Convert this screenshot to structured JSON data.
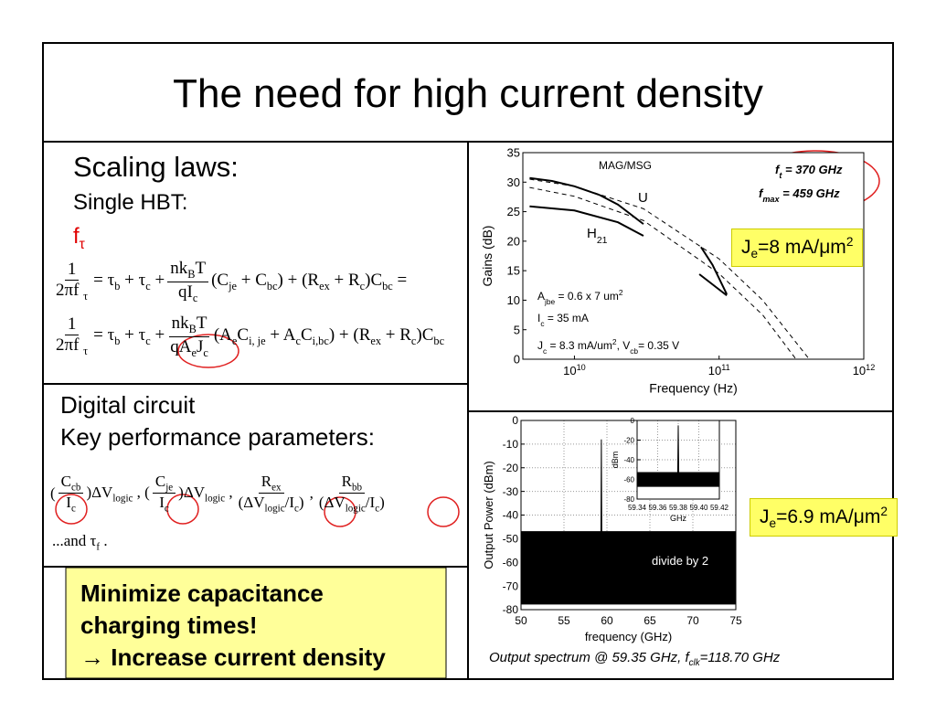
{
  "title": "The need for high current density",
  "scaling": {
    "heading": "Scaling laws:",
    "subheading": "Single HBT:",
    "symbol": "f_{τ}",
    "equations": [
      [
        {
          "num": "1",
          "den": "2πf _{τ}"
        },
        " = τ_{b} + τ_{c} + ",
        {
          "num": "nk_{B}T",
          "den": "qI_{c}"
        },
        "(C_{je} + C_{bc}) + (R_{ex} + R_{c})C_{bc} ="
      ],
      [
        {
          "num": "1",
          "den": "2πf _{τ}"
        },
        " = τ_{b} + τ_{c} + ",
        {
          "num": "nk_{B}T",
          "den": "qA_{e}J_{c}"
        },
        "(A_{e}C_{i, je} + A_{c}C_{i,bc}) + (R_{ex} + R_{c})C_{bc}"
      ]
    ]
  },
  "digital": {
    "heading": "Digital circuit",
    "subheading": "Key performance parameters:",
    "formula": [
      "(",
      {
        "num": "C_{cb}",
        "den": "I_{c}"
      },
      ")ΔV_{logic} , (",
      {
        "num": "C_{je}",
        "den": "I_{c}"
      },
      ")ΔV_{logic} , ",
      {
        "num": "R_{ex}",
        "den": "(ΔV_{logic}/I_{c})"
      },
      ", ",
      {
        "num": "R_{bb}",
        "den": "(ΔV_{logic}/I_{c})"
      }
    ],
    "footer": "...and τ_{f} ."
  },
  "conclusion": [
    "Minimize capacitance",
    "charging times!",
    "→ Increase current density"
  ],
  "notes": [
    "J_{e}=8 mA/μm^{2}",
    "J_{e}=6.9 mA/μm^{2}"
  ],
  "caption": "Output spectrum @ 59.35 GHz, f_{clk}=118.70 GHz",
  "chart_data": [
    {
      "type": "line",
      "xlabel": "Frequency (Hz)",
      "ylabel": "Gains (dB)",
      "xscale": "log",
      "xlim": [
        4400000000,
        1000000000000
      ],
      "ylim": [
        0,
        35
      ],
      "xticks": [
        {
          "value": 10000000000,
          "label": "10^{10}"
        },
        {
          "value": 100000000000,
          "label": "10^{11}"
        },
        {
          "value": 1000000000000,
          "label": "10^{12}"
        }
      ],
      "yticks": [
        0,
        5,
        10,
        15,
        20,
        25,
        30,
        35
      ],
      "grid": false,
      "series": [
        {
          "color": "#000000",
          "x": [
            4900000000,
            7000000000,
            10000000000,
            15000000000,
            20000000000,
            30000000000,
            null,
            75000000000,
            90000000000,
            113000000000
          ],
          "values": [
            30.7,
            30.2,
            29.3,
            27.8,
            26.2,
            22.9,
            null,
            19,
            16,
            11
          ]
        },
        {
          "color": "#000000",
          "x": [
            4900000000,
            10000000000,
            20000000000,
            30000000000,
            null,
            73000000000,
            113000000000
          ],
          "values": [
            25.9,
            25.2,
            23.2,
            20.9,
            null,
            14.4,
            10.8
          ]
        },
        {
          "color": "#000000",
          "dash": true,
          "x": [
            4900000000,
            10000000000,
            30000000000,
            100000000000,
            200000000000,
            420000000000
          ],
          "values": [
            30.5,
            29.3,
            25.5,
            17,
            10,
            0
          ]
        },
        {
          "color": "#000000",
          "dash": true,
          "x": [
            4900000000,
            10000000000,
            30000000000,
            100000000000,
            200000000000,
            340000000000
          ],
          "values": [
            29.1,
            27.6,
            23.5,
            14.5,
            7.5,
            0
          ]
        }
      ],
      "annotations": [
        "MAG/MSG",
        "U",
        "H_{21}",
        "f_{t} = 370 GHz",
        "f_{max} = 459 GHz",
        "A_{jbe} = 0.6 x 7 um^{2}",
        "I_{c} = 35 mA",
        "J_{c} = 8.3 mA/um^{2}, V_{cb}= 0.35 V"
      ]
    },
    {
      "type": "line",
      "xlabel": "frequency (GHz)",
      "ylabel": "Output Power (dBm)",
      "xlim": [
        50,
        75
      ],
      "ylim": [
        -80,
        0
      ],
      "xticks": [
        50,
        55,
        60,
        65,
        70,
        75
      ],
      "yticks": [
        0,
        -10,
        -20,
        -30,
        -40,
        -50,
        -60,
        -70,
        -80
      ],
      "grid": true,
      "series": [
        {
          "color": "#000000",
          "area": true,
          "x": [
            50,
            59.3,
            59.35,
            59.4,
            75
          ],
          "values": [
            -47,
            -47,
            -8,
            -47,
            -47
          ]
        },
        {
          "color": "#ffffff",
          "area": true,
          "x": [
            50,
            75
          ],
          "values": [
            -78,
            -78
          ]
        }
      ],
      "annotations": [
        "divide by 2"
      ]
    },
    {
      "type": "line",
      "xlabel": "GHz",
      "ylabel": "dBm",
      "xlim": [
        59.34,
        59.42
      ],
      "ylim": [
        -80,
        0
      ],
      "xticks": [
        59.34,
        59.36,
        59.38,
        {
          "value": 59.4,
          "label": "59.40"
        },
        59.42
      ],
      "yticks": [
        0,
        -20,
        -40,
        -60,
        -80
      ],
      "grid": true,
      "series": [
        {
          "color": "#000000",
          "area": true,
          "x": [
            59.34,
            59.3795,
            59.38,
            59.3805,
            59.42
          ],
          "values": [
            -53,
            -53,
            -5,
            -53,
            -53
          ]
        },
        {
          "color": "#ffffff",
          "area": true,
          "x": [
            59.34,
            59.42
          ],
          "values": [
            -68,
            -68
          ]
        }
      ],
      "annotations": []
    }
  ]
}
